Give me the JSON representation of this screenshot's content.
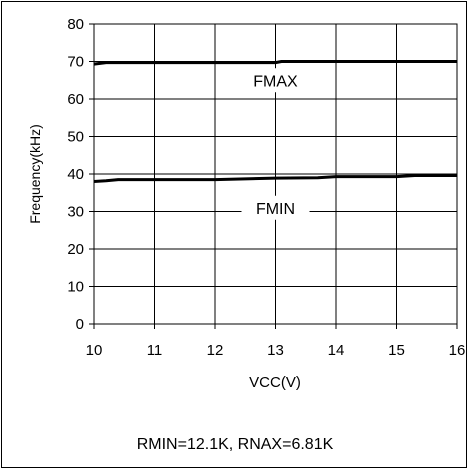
{
  "chart_data": {
    "type": "line",
    "xlabel": "VCC(V)",
    "ylabel": "Frequency(kHz)",
    "xlim": [
      10,
      16
    ],
    "ylim": [
      0,
      80
    ],
    "xticks": [
      10,
      11,
      12,
      13,
      14,
      15,
      16
    ],
    "yticks": [
      0,
      10,
      20,
      30,
      40,
      50,
      60,
      70,
      80
    ],
    "grid": true,
    "annotations": [
      {
        "text": "FMAX",
        "x": 13.0,
        "y": 65
      },
      {
        "text": "FMIN",
        "x": 13.0,
        "y": 31
      }
    ],
    "footnote": "RMIN=12.1K, RNAX=6.81K",
    "series": [
      {
        "name": "FMAX",
        "x": [
          10.0,
          10.2,
          11.0,
          12.0,
          13.0,
          13.1,
          14.0,
          15.0,
          16.0
        ],
        "y": [
          69.3,
          69.7,
          69.7,
          69.7,
          69.7,
          70.0,
          70.0,
          70.0,
          70.0
        ]
      },
      {
        "name": "FMIN",
        "x": [
          10.0,
          10.2,
          10.4,
          11.0,
          12.0,
          13.0,
          13.7,
          14.0,
          15.0,
          15.3,
          16.0
        ],
        "y": [
          38.0,
          38.2,
          38.5,
          38.5,
          38.5,
          38.9,
          39.0,
          39.3,
          39.3,
          39.6,
          39.6
        ]
      }
    ],
    "colors": {
      "line": "#000000",
      "grid": "#000000",
      "text": "#000000"
    }
  }
}
